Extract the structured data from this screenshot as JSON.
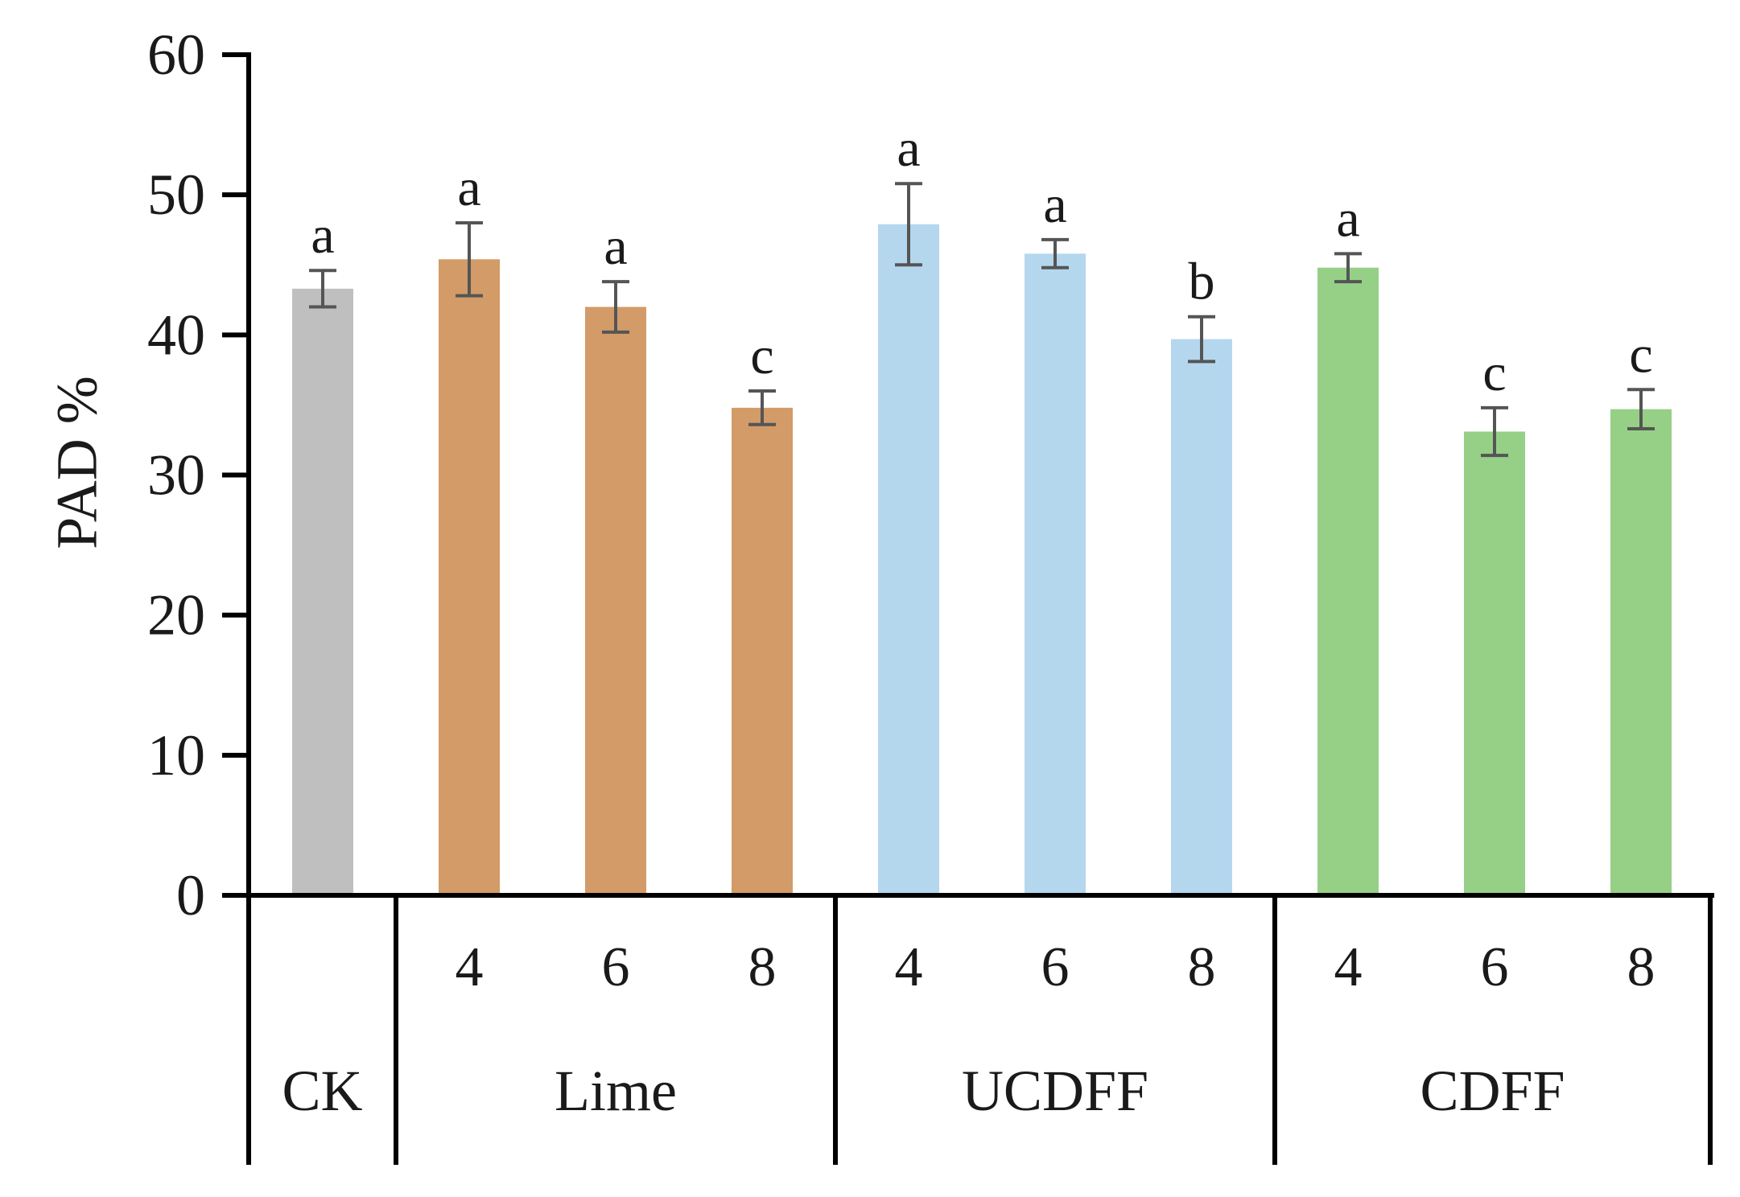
{
  "chart_data": {
    "type": "bar",
    "title": "",
    "xlabel": "",
    "ylabel": "PAD %",
    "ylim": [
      0,
      60
    ],
    "yticks": [
      "0",
      "10",
      "20",
      "30",
      "40",
      "50",
      "60"
    ],
    "grid": false,
    "legend": "none",
    "groups": [
      {
        "label": "CK",
        "color": "#bfbfbf",
        "bars": [
          {
            "sub": "",
            "value": 43.3,
            "err": 1.3,
            "letter": "a"
          }
        ]
      },
      {
        "label": "Lime",
        "color": "#d39b68",
        "bars": [
          {
            "sub": "4",
            "value": 45.4,
            "err": 2.6,
            "letter": "a"
          },
          {
            "sub": "6",
            "value": 42.0,
            "err": 1.8,
            "letter": "a"
          },
          {
            "sub": "8",
            "value": 34.8,
            "err": 1.2,
            "letter": "c"
          }
        ]
      },
      {
        "label": "UCDFF",
        "color": "#b4d7ee",
        "bars": [
          {
            "sub": "4",
            "value": 47.9,
            "err": 2.9,
            "letter": "a"
          },
          {
            "sub": "6",
            "value": 45.8,
            "err": 1.0,
            "letter": "a"
          },
          {
            "sub": "8",
            "value": 39.7,
            "err": 1.6,
            "letter": "b"
          }
        ]
      },
      {
        "label": "CDFF",
        "color": "#95d086",
        "bars": [
          {
            "sub": "4",
            "value": 44.8,
            "err": 1.0,
            "letter": "a"
          },
          {
            "sub": "6",
            "value": 33.1,
            "err": 1.7,
            "letter": "c"
          },
          {
            "sub": "8",
            "value": 34.7,
            "err": 1.4,
            "letter": "c"
          }
        ]
      }
    ],
    "error_bar_color": "#555555"
  }
}
